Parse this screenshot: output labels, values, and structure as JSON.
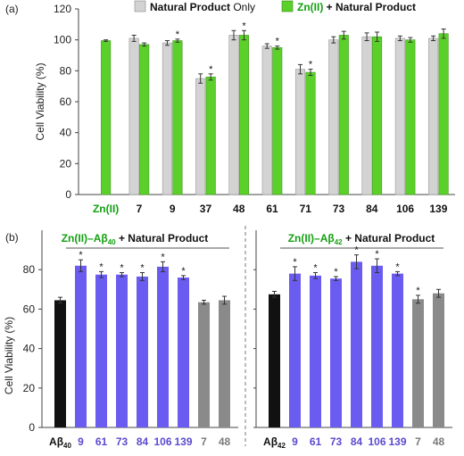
{
  "chart_data": [
    {
      "type": "bar",
      "panel_label": "(a)",
      "ylabel": "Cell Viability (%)",
      "ylim": [
        0,
        120
      ],
      "yticks": [
        0,
        20,
        40,
        60,
        80,
        100,
        120
      ],
      "grid": false,
      "legend_position": "top",
      "categories": [
        "Zn(II)",
        "7",
        "9",
        "37",
        "48",
        "61",
        "71",
        "73",
        "84",
        "106",
        "139"
      ],
      "category_colors": [
        "#14a012",
        "#111111",
        "#111111",
        "#111111",
        "#111111",
        "#111111",
        "#111111",
        "#111111",
        "#111111",
        "#111111",
        "#111111"
      ],
      "series": [
        {
          "legend_bold": "Natural Product",
          "legend_rest": " Only",
          "color": "#d3d3d3",
          "values": [
            null,
            101,
            98,
            75,
            103,
            96,
            81,
            100,
            102,
            101,
            101
          ],
          "errors": [
            null,
            2,
            1.5,
            3,
            3,
            1.5,
            3,
            2,
            2.5,
            1.5,
            1.5
          ],
          "significant": [
            false,
            false,
            false,
            false,
            false,
            false,
            false,
            false,
            false,
            false,
            false
          ]
        },
        {
          "legend_bold": "Zn(II) + Natural Product",
          "legend_rest": "",
          "color": "#5cd02a",
          "values": [
            99.5,
            97,
            99.5,
            76,
            103,
            95,
            79,
            103,
            102,
            100,
            104
          ],
          "errors": [
            0.5,
            1,
            1,
            2,
            3,
            1,
            2,
            2.5,
            3,
            1.5,
            3
          ],
          "significant": [
            false,
            false,
            true,
            true,
            true,
            true,
            true,
            false,
            false,
            false,
            false
          ]
        }
      ]
    },
    {
      "type": "bar",
      "panel_label": "(b)",
      "ylabel": "Cell Viability (%)",
      "ylim": [
        0,
        100
      ],
      "yticks": [
        0,
        20,
        40,
        60,
        80
      ],
      "grid": false,
      "groups": [
        {
          "title_zn": "Zn(II)",
          "title_ab": "–Aβ",
          "title_sub": "40",
          "title_rest": " + Natural Product",
          "bars": [
            {
              "label": "Aβ",
              "sub": "40",
              "value": 64.5,
              "error": 1.5,
              "color": "#111111",
              "label_color": "#111111",
              "significant": false
            },
            {
              "label": "9",
              "sub": "",
              "value": 82,
              "error": 3,
              "color": "#6a5cf0",
              "label_color": "#5a4ad0",
              "significant": true
            },
            {
              "label": "61",
              "sub": "",
              "value": 77.5,
              "error": 1.5,
              "color": "#6a5cf0",
              "label_color": "#5a4ad0",
              "significant": true
            },
            {
              "label": "73",
              "sub": "",
              "value": 77.5,
              "error": 1,
              "color": "#6a5cf0",
              "label_color": "#5a4ad0",
              "significant": true
            },
            {
              "label": "84",
              "sub": "",
              "value": 76.5,
              "error": 2,
              "color": "#6a5cf0",
              "label_color": "#5a4ad0",
              "significant": true
            },
            {
              "label": "106",
              "sub": "",
              "value": 81.5,
              "error": 2.5,
              "color": "#6a5cf0",
              "label_color": "#5a4ad0",
              "significant": true
            },
            {
              "label": "139",
              "sub": "",
              "value": 76,
              "error": 1,
              "color": "#6a5cf0",
              "label_color": "#5a4ad0",
              "significant": true
            },
            {
              "label": "7",
              "sub": "",
              "value": 63.5,
              "error": 1,
              "color": "#8a8a8a",
              "label_color": "#7a7a7a",
              "significant": false
            },
            {
              "label": "48",
              "sub": "",
              "value": 64.5,
              "error": 2,
              "color": "#8a8a8a",
              "label_color": "#7a7a7a",
              "significant": false
            }
          ]
        },
        {
          "title_zn": "Zn(II)",
          "title_ab": "–Aβ",
          "title_sub": "42",
          "title_rest": " + Natural Product",
          "bars": [
            {
              "label": "Aβ",
              "sub": "42",
              "value": 67.5,
              "error": 1.5,
              "color": "#111111",
              "label_color": "#111111",
              "significant": false
            },
            {
              "label": "9",
              "sub": "",
              "value": 78,
              "error": 3.5,
              "color": "#6a5cf0",
              "label_color": "#5a4ad0",
              "significant": true
            },
            {
              "label": "61",
              "sub": "",
              "value": 77,
              "error": 1.5,
              "color": "#6a5cf0",
              "label_color": "#5a4ad0",
              "significant": true
            },
            {
              "label": "73",
              "sub": "",
              "value": 75.5,
              "error": 1,
              "color": "#6a5cf0",
              "label_color": "#5a4ad0",
              "significant": true
            },
            {
              "label": "84",
              "sub": "",
              "value": 84,
              "error": 3.5,
              "color": "#6a5cf0",
              "label_color": "#5a4ad0",
              "significant": true
            },
            {
              "label": "106",
              "sub": "",
              "value": 82,
              "error": 3.5,
              "color": "#6a5cf0",
              "label_color": "#5a4ad0",
              "significant": true
            },
            {
              "label": "139",
              "sub": "",
              "value": 78,
              "error": 1,
              "color": "#6a5cf0",
              "label_color": "#5a4ad0",
              "significant": true
            },
            {
              "label": "7",
              "sub": "",
              "value": 65,
              "error": 2,
              "color": "#8a8a8a",
              "label_color": "#7a7a7a",
              "significant": true
            },
            {
              "label": "48",
              "sub": "",
              "value": 68,
              "error": 2,
              "color": "#8a8a8a",
              "label_color": "#7a7a7a",
              "significant": false
            }
          ]
        }
      ]
    }
  ]
}
